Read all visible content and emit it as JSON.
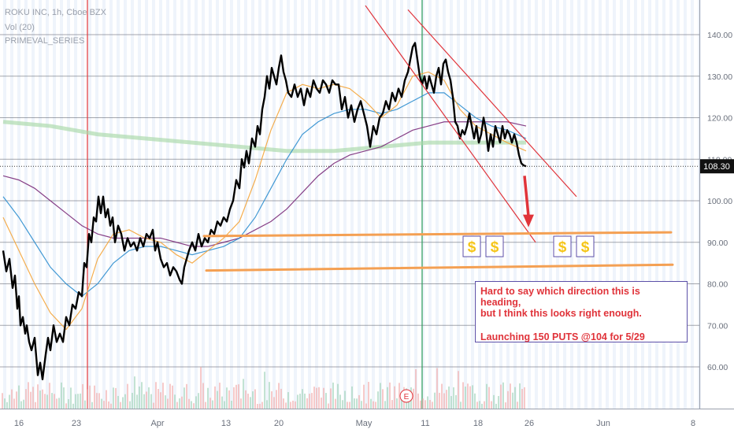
{
  "legend": {
    "symbol_line": "ROKU INC, 1h, Cboe BZX",
    "volume_line": "Vol (20)",
    "indicator_line": "PRIMEVAL_SERIES"
  },
  "last_price_label": "108.30",
  "annotation": {
    "line1": "Hard to say which direction this is heading,",
    "line2": "but I think this looks right enough.",
    "line3": "Launching 150 PUTS @104 for 5/29"
  },
  "earnings_marker": "E",
  "dollar_icon": "dollar-sign-icon",
  "colors": {
    "price": "#000000",
    "ma_fast": "#f4a53b",
    "ma_mid": "#2e8ecf",
    "ma_slow": "#7a2b7a",
    "ma_long": "#a8d8a8",
    "channel": "#e0333a",
    "support": "#f4a053",
    "annotation_border": "#5c4fa8",
    "vline_red": "#e0333a",
    "vline_green": "#2e9e5a",
    "dollar_fill": "#f5c518"
  },
  "chart_data": {
    "type": "line",
    "title": "ROKU INC, 1h, Cboe BZX",
    "xlabel": "",
    "ylabel": "",
    "ylim": [
      52,
      148
    ],
    "y_ticks": [
      60,
      70,
      80,
      90,
      100,
      110,
      120,
      130,
      140
    ],
    "y_tick_labels": [
      "60.00",
      "70.00",
      "80.00",
      "90.00",
      "100.00",
      "110.00",
      "120.00",
      "130.00",
      "140.00"
    ],
    "x_tick_labels": [
      "16",
      "23",
      "Apr",
      "13",
      "20",
      "May",
      "11",
      "18",
      "26",
      "Jun",
      "8"
    ],
    "last_price": 108.3,
    "series": [
      {
        "name": "ROKU INC",
        "x": [
          0,
          4,
          8,
          12,
          15,
          18,
          20,
          22,
          25,
          28,
          30,
          33,
          36,
          40,
          44,
          47,
          50,
          54,
          57,
          60,
          64,
          68,
          72,
          76,
          80,
          84,
          88,
          92,
          96,
          100,
          103,
          106,
          109,
          112,
          115,
          118,
          121,
          124,
          127,
          130,
          133,
          136,
          139,
          142,
          146,
          150,
          154,
          158,
          162,
          166,
          170,
          174,
          178,
          182,
          186,
          190,
          193,
          196,
          200,
          204,
          208,
          212,
          216,
          220,
          224,
          227,
          230,
          233,
          236,
          240,
          244,
          248,
          252,
          256,
          260,
          264,
          268,
          272,
          276,
          280,
          284,
          288,
          292,
          296,
          300,
          303,
          306,
          309,
          312,
          316,
          320,
          323,
          326,
          329,
          332,
          335,
          338,
          341,
          344,
          347,
          350,
          353,
          356,
          359,
          362,
          366,
          370,
          374,
          378,
          382,
          386,
          390,
          394,
          398,
          402,
          406,
          410,
          414,
          418,
          422,
          426,
          430,
          434,
          438,
          442,
          446,
          450,
          454,
          458,
          462,
          466,
          470,
          474,
          478,
          482,
          486,
          490,
          494,
          498,
          502,
          506,
          510,
          514,
          517,
          520,
          523,
          526,
          529,
          532,
          535,
          538,
          541,
          544,
          547,
          550,
          553,
          556,
          559,
          562,
          565,
          568,
          571,
          574,
          577,
          580,
          583,
          586,
          589,
          592,
          595,
          598,
          601,
          604,
          607,
          610,
          613,
          616,
          619,
          622,
          625,
          628,
          631,
          634,
          637,
          640,
          643,
          646,
          649,
          652,
          655,
          658,
          661,
          664
        ],
        "values": [
          88,
          83,
          86,
          79,
          82,
          74,
          77,
          70,
          72,
          68,
          70,
          66,
          64,
          67,
          58,
          61,
          57,
          63,
          67,
          64,
          70,
          66,
          68,
          66,
          72,
          70,
          75,
          74,
          78,
          77,
          85,
          84,
          92,
          90,
          96,
          95,
          101,
          97,
          101,
          96,
          98,
          94,
          96,
          90,
          94,
          92,
          88,
          91,
          89,
          90,
          88,
          91,
          89,
          92,
          91,
          93,
          88,
          90,
          86,
          84,
          85,
          82,
          84,
          83,
          81,
          80,
          84,
          86,
          88,
          90,
          88,
          92,
          89,
          91,
          90,
          93,
          92,
          95,
          94,
          96,
          95,
          98,
          100,
          105,
          103,
          110,
          108,
          112,
          109,
          115,
          113,
          118,
          116,
          122,
          125,
          130,
          127,
          132,
          130,
          128,
          132,
          135,
          131,
          129,
          126,
          125,
          128,
          125,
          127,
          123,
          127,
          125,
          129,
          127,
          126,
          129,
          128,
          126,
          129,
          128,
          128,
          122,
          125,
          120,
          123,
          119,
          122,
          124,
          121,
          118,
          113,
          118,
          116,
          120,
          121,
          124,
          122,
          126,
          124,
          127,
          125,
          129,
          131,
          134,
          137,
          138,
          134,
          130,
          128,
          130,
          127,
          130,
          128,
          126,
          130,
          132,
          128,
          133,
          134,
          131,
          129,
          125,
          119,
          118,
          115,
          117,
          116,
          118,
          121,
          118,
          115,
          118,
          114,
          116,
          120,
          117,
          112,
          116,
          113,
          118,
          116,
          114,
          118,
          115,
          117,
          116,
          114,
          116,
          114,
          111,
          109,
          108.5,
          108.3
        ]
      },
      {
        "name": "MA fast",
        "x": [
          0,
          20,
          40,
          60,
          80,
          100,
          120,
          140,
          160,
          180,
          200,
          220,
          240,
          260,
          280,
          300,
          320,
          340,
          360,
          380,
          400,
          420,
          440,
          460,
          480,
          500,
          520,
          540,
          560,
          580,
          600,
          620,
          640,
          664
        ],
        "values": [
          96,
          88,
          80,
          73,
          69,
          74,
          86,
          92,
          93,
          91,
          90,
          87,
          85,
          88,
          91,
          95,
          105,
          117,
          126,
          128,
          127,
          128,
          127,
          124,
          120,
          123,
          130,
          131,
          129,
          122,
          118,
          116,
          114,
          112
        ]
      },
      {
        "name": "MA mid",
        "x": [
          0,
          20,
          40,
          60,
          80,
          100,
          120,
          140,
          160,
          180,
          200,
          220,
          240,
          260,
          280,
          300,
          320,
          340,
          360,
          380,
          400,
          420,
          440,
          460,
          480,
          500,
          520,
          540,
          560,
          580,
          600,
          620,
          640,
          664
        ],
        "values": [
          101,
          96,
          90,
          84,
          80,
          77,
          80,
          85,
          88,
          89,
          89,
          88,
          87,
          88,
          89,
          91,
          96,
          103,
          110,
          116,
          119,
          121,
          122,
          122,
          121,
          122,
          124,
          126,
          126,
          123,
          120,
          118,
          117,
          115
        ]
      },
      {
        "name": "MA slow",
        "x": [
          0,
          20,
          40,
          60,
          80,
          100,
          120,
          140,
          160,
          180,
          200,
          220,
          240,
          260,
          280,
          300,
          320,
          340,
          360,
          380,
          400,
          420,
          440,
          460,
          480,
          500,
          520,
          540,
          560,
          580,
          600,
          620,
          640,
          664
        ],
        "values": [
          106,
          105,
          103,
          100,
          97,
          94,
          92,
          91,
          91,
          91,
          91,
          90,
          89,
          89,
          90,
          91,
          93,
          95,
          98,
          102,
          106,
          109,
          111,
          112,
          113,
          115,
          117,
          118,
          119,
          119,
          119,
          119,
          119,
          118
        ]
      },
      {
        "name": "MA long",
        "x": [
          0,
          60,
          120,
          180,
          240,
          300,
          360,
          420,
          480,
          540,
          600,
          664
        ],
        "values": [
          119,
          118,
          116,
          115,
          114,
          113,
          112,
          112,
          113,
          114,
          114,
          114
        ]
      }
    ],
    "annotations": [
      {
        "type": "channel-line",
        "from": [
          460,
          147
        ],
        "to": [
          676,
          90
        ]
      },
      {
        "type": "channel-line",
        "from": [
          514,
          146
        ],
        "to": [
          728,
          101
        ]
      },
      {
        "type": "support-line",
        "from": [
          255,
          91.5
        ],
        "to": [
          848,
          92.4
        ]
      },
      {
        "type": "support-line",
        "from": [
          258,
          83.2
        ],
        "to": [
          850,
          84.6
        ]
      },
      {
        "type": "down-arrow",
        "from": [
          662,
          106
        ],
        "to": [
          667,
          94
        ]
      }
    ],
    "dollar_markers": [
      {
        "x": 595,
        "y": 89
      },
      {
        "x": 624,
        "y": 89
      },
      {
        "x": 710,
        "y": 89
      },
      {
        "x": 739,
        "y": 89
      }
    ],
    "earnings_x": 512,
    "vertical_lines": [
      {
        "x": 107,
        "color": "red"
      },
      {
        "x": 532,
        "color": "green"
      }
    ],
    "grid": true,
    "legend_placement": "top-left"
  }
}
